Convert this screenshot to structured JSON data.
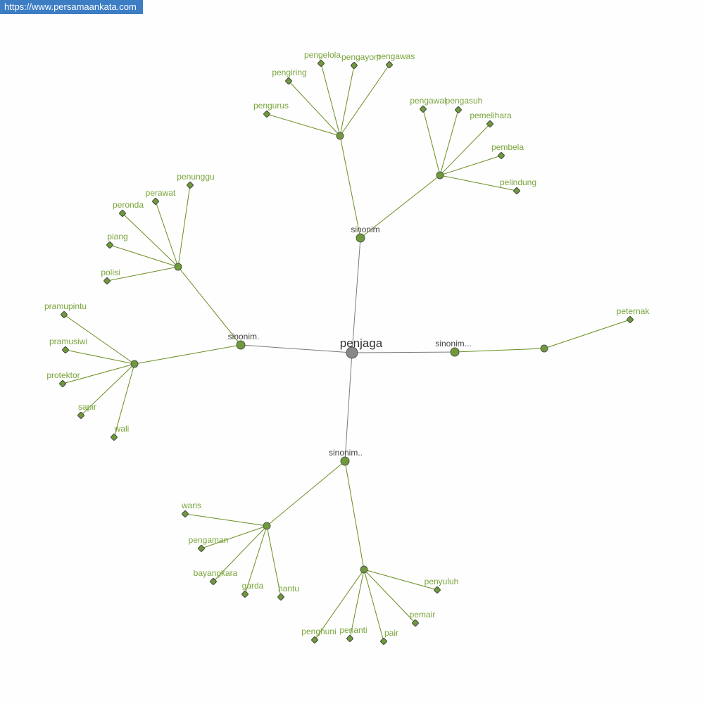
{
  "header": {
    "url": "https://www.persamaankata.com"
  },
  "colors": {
    "node": "#6f9a3a",
    "edge": "#6b8e23",
    "center": "#888888",
    "center_edge": "#7a7a7a",
    "label": "#7ba43c"
  },
  "graph": {
    "nodes": [
      {
        "id": "c",
        "label": "penjaga",
        "kind": "center"
      },
      {
        "id": "h1",
        "label": "sinonim",
        "kind": "hub",
        "parent": "c"
      },
      {
        "id": "h2",
        "label": "sinonim.",
        "kind": "hub",
        "parent": "c"
      },
      {
        "id": "h3",
        "label": "sinonim...",
        "kind": "hub",
        "parent": "c"
      },
      {
        "id": "h4",
        "label": "sinonim..",
        "kind": "hub",
        "parent": "c"
      },
      {
        "id": "A",
        "label": "",
        "kind": "group",
        "parent": "h1"
      },
      {
        "id": "B",
        "label": "",
        "kind": "group",
        "parent": "h1"
      },
      {
        "id": "C",
        "label": "",
        "kind": "group",
        "parent": "h2"
      },
      {
        "id": "D",
        "label": "",
        "kind": "group",
        "parent": "h2"
      },
      {
        "id": "E",
        "label": "",
        "kind": "group",
        "parent": "h3"
      },
      {
        "id": "F",
        "label": "",
        "kind": "group",
        "parent": "h4"
      },
      {
        "id": "G",
        "label": "",
        "kind": "group",
        "parent": "h4"
      },
      {
        "id": "pengurus",
        "label": "pengurus",
        "kind": "leaf",
        "parent": "A"
      },
      {
        "id": "pengiring",
        "label": "pengiring",
        "kind": "leaf",
        "parent": "A"
      },
      {
        "id": "pengelola",
        "label": "pengelola",
        "kind": "leaf",
        "parent": "A"
      },
      {
        "id": "pengayom",
        "label": "pengayom",
        "kind": "leaf",
        "parent": "A"
      },
      {
        "id": "pengawas",
        "label": "pengawas",
        "kind": "leaf",
        "parent": "A"
      },
      {
        "id": "pengawal",
        "label": "pengawal",
        "kind": "leaf",
        "parent": "B"
      },
      {
        "id": "pengasuh",
        "label": "pengasuh",
        "kind": "leaf",
        "parent": "B"
      },
      {
        "id": "pemelihara",
        "label": "pemelihara",
        "kind": "leaf",
        "parent": "B"
      },
      {
        "id": "pembela",
        "label": "pembela",
        "kind": "leaf",
        "parent": "B"
      },
      {
        "id": "pelindung",
        "label": "pelindung",
        "kind": "leaf",
        "parent": "B"
      },
      {
        "id": "penunggu",
        "label": "penunggu",
        "kind": "leaf",
        "parent": "C"
      },
      {
        "id": "perawat",
        "label": "perawat",
        "kind": "leaf",
        "parent": "C"
      },
      {
        "id": "peronda",
        "label": "peronda",
        "kind": "leaf",
        "parent": "C"
      },
      {
        "id": "piang",
        "label": "piang",
        "kind": "leaf",
        "parent": "C"
      },
      {
        "id": "polisi",
        "label": "polisi",
        "kind": "leaf",
        "parent": "C"
      },
      {
        "id": "pramupintu",
        "label": "pramupintu",
        "kind": "leaf",
        "parent": "D"
      },
      {
        "id": "pramusiwi",
        "label": "pramusiwi",
        "kind": "leaf",
        "parent": "D"
      },
      {
        "id": "protektor",
        "label": "protektor",
        "kind": "leaf",
        "parent": "D"
      },
      {
        "id": "sapir",
        "label": "sapir",
        "kind": "leaf",
        "parent": "D"
      },
      {
        "id": "wali",
        "label": "wali",
        "kind": "leaf",
        "parent": "D"
      },
      {
        "id": "peternak",
        "label": "peternak",
        "kind": "leaf",
        "parent": "E"
      },
      {
        "id": "waris",
        "label": "waris",
        "kind": "leaf",
        "parent": "F"
      },
      {
        "id": "pengaman",
        "label": "pengaman",
        "kind": "leaf",
        "parent": "F"
      },
      {
        "id": "bayangkara",
        "label": "bayangkara",
        "kind": "leaf",
        "parent": "F"
      },
      {
        "id": "garda",
        "label": "garda",
        "kind": "leaf",
        "parent": "F"
      },
      {
        "id": "hantu",
        "label": "hantu",
        "kind": "leaf",
        "parent": "F"
      },
      {
        "id": "penyuluh",
        "label": "penyuluh",
        "kind": "leaf",
        "parent": "G"
      },
      {
        "id": "pemair",
        "label": "pemair",
        "kind": "leaf",
        "parent": "G"
      },
      {
        "id": "pair",
        "label": "pair",
        "kind": "leaf",
        "parent": "G"
      },
      {
        "id": "penanti",
        "label": "penanti",
        "kind": "leaf",
        "parent": "G"
      },
      {
        "id": "penghuni",
        "label": "penghuni",
        "kind": "leaf",
        "parent": "G"
      }
    ]
  }
}
